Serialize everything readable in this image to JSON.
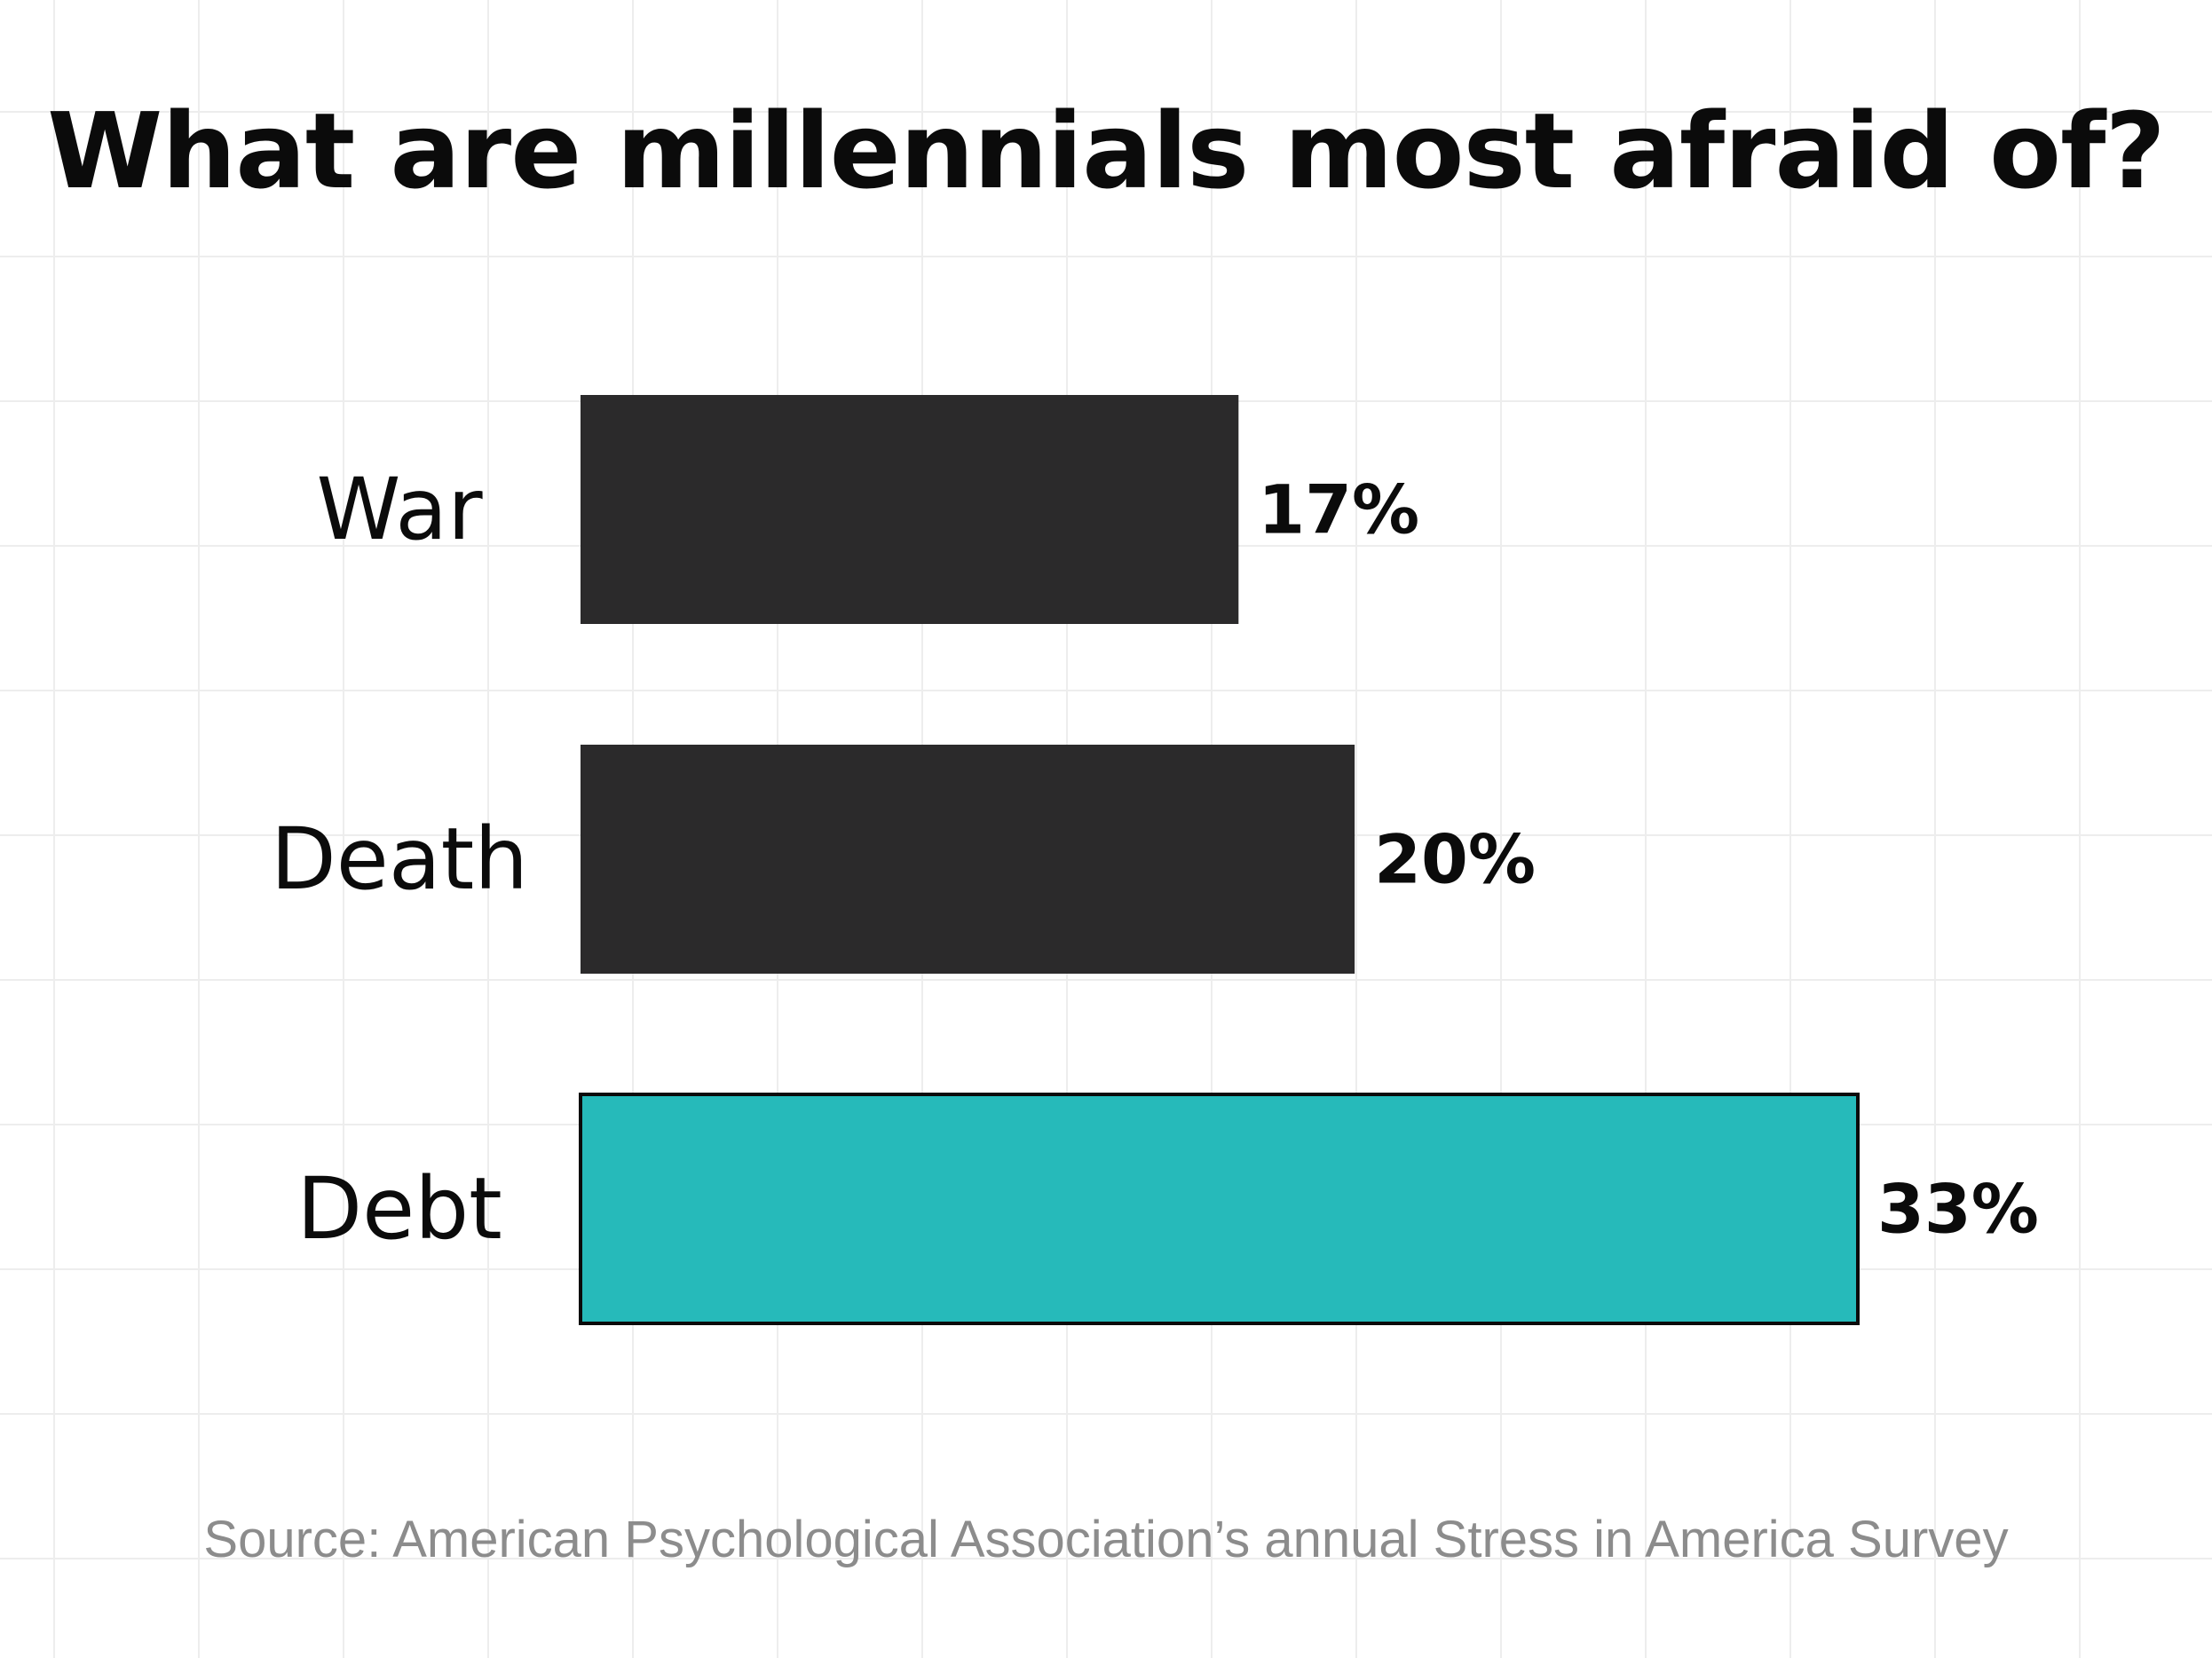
{
  "chart_data": {
    "type": "bar",
    "orientation": "horizontal",
    "title": "What are millennials most afraid of?",
    "categories": [
      "War",
      "Death",
      "Debt"
    ],
    "values": [
      17,
      20,
      33
    ],
    "value_labels": [
      "17%",
      "20%",
      "33%"
    ],
    "unit": "%",
    "xlim": [
      0,
      33
    ],
    "grid": true,
    "legend": "none",
    "colors": {
      "default_bar": "#2b2a2b",
      "highlight_bar": "#26baba",
      "highlight_outline": "#0b0b0b"
    },
    "highlight_category": "Debt"
  },
  "source_note": "Source: American Psychological Association’s annual Stress in America Survey"
}
